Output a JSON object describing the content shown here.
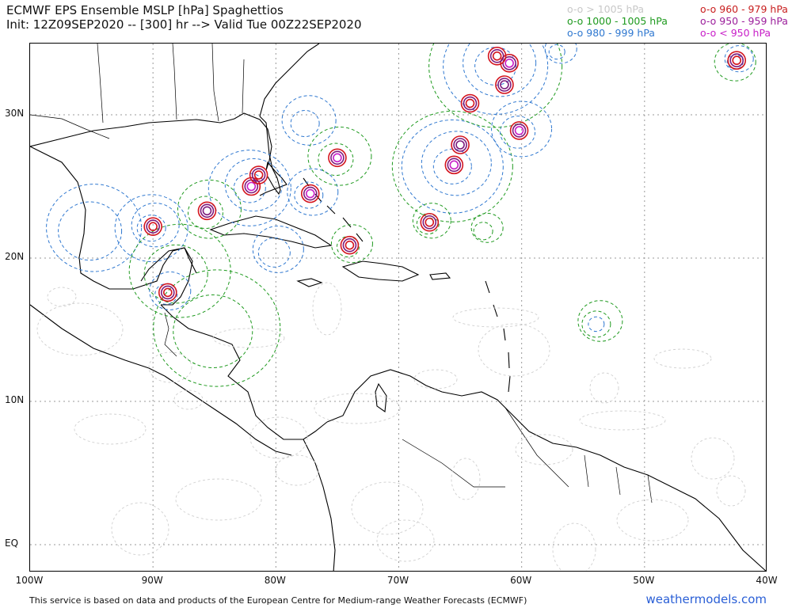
{
  "title": {
    "line1": "ECMWF EPS Ensemble MSLP [hPa] Spaghettios",
    "line2": "Init: 12Z09SEP2020 -- [300] hr --> Valid Tue 00Z22SEP2020"
  },
  "legend": {
    "col1": [
      {
        "text": "o-o > 1005 hPa",
        "color": "#c8c8c8"
      },
      {
        "text": "o-o 1000 - 1005 hPa",
        "color": "#1f9a1f"
      },
      {
        "text": "o-o 980 - 999 hPa",
        "color": "#2f78d0"
      }
    ],
    "col2": [
      {
        "text": "o-o 960 - 979 hPa",
        "color": "#c81e1e"
      },
      {
        "text": "o-o 950 - 959 hPa",
        "color": "#9b1e9b"
      },
      {
        "text": "o-o < 950 hPa",
        "color": "#c81ec8"
      }
    ]
  },
  "axes": {
    "lat_labels": [
      "30N",
      "20N",
      "10N",
      "EQ"
    ],
    "lon_labels": [
      "100W",
      "90W",
      "80W",
      "70W",
      "60W",
      "50W",
      "40W"
    ]
  },
  "footer": {
    "credit": "This service is based on data and products of the European Centre for Medium-range Weather Forecasts (ECMWF)",
    "brand": "weathermodels.com"
  },
  "lows": [
    {
      "lon": -90.0,
      "lat": 22.2,
      "cat": "red"
    },
    {
      "lon": -85.6,
      "lat": 23.3,
      "cat": "purple"
    },
    {
      "lon": -82.0,
      "lat": 25.0,
      "cat": "magenta"
    },
    {
      "lon": -81.4,
      "lat": 25.8,
      "cat": "red"
    },
    {
      "lon": -77.2,
      "lat": 24.5,
      "cat": "magenta"
    },
    {
      "lon": -75.0,
      "lat": 27.0,
      "cat": "magenta"
    },
    {
      "lon": -74.0,
      "lat": 20.9,
      "cat": "red"
    },
    {
      "lon": -88.8,
      "lat": 17.6,
      "cat": "red"
    },
    {
      "lon": -67.5,
      "lat": 22.5,
      "cat": "red"
    },
    {
      "lon": -65.5,
      "lat": 26.5,
      "cat": "magenta"
    },
    {
      "lon": -65.0,
      "lat": 27.9,
      "cat": "purple"
    },
    {
      "lon": -60.2,
      "lat": 28.9,
      "cat": "magenta"
    },
    {
      "lon": -61.4,
      "lat": 32.1,
      "cat": "purple"
    },
    {
      "lon": -61.0,
      "lat": 33.6,
      "cat": "magenta"
    },
    {
      "lon": -62.0,
      "lat": 34.1,
      "cat": "red"
    },
    {
      "lon": -42.5,
      "lat": 33.8,
      "cat": "red"
    },
    {
      "lon": -64.2,
      "lat": 30.8,
      "cat": "red"
    }
  ],
  "contour_rings": [
    {
      "lon": -90.0,
      "lat": 22.2,
      "color": "#2f78d0",
      "r": [
        18,
        30,
        46
      ]
    },
    {
      "lon": -85.6,
      "lat": 23.3,
      "color": "#1f9a1f",
      "r": [
        22,
        40
      ]
    },
    {
      "lon": -82.0,
      "lat": 25.0,
      "color": "#2f78d0",
      "r": [
        20,
        36,
        52
      ]
    },
    {
      "lon": -77.2,
      "lat": 24.5,
      "color": "#2f78d0",
      "r": [
        18,
        32
      ]
    },
    {
      "lon": -77.5,
      "lat": 29.5,
      "color": "#2f78d0",
      "r": [
        18,
        34
      ]
    },
    {
      "lon": -75.0,
      "lat": 27.0,
      "color": "#1f9a1f",
      "r": [
        22,
        40
      ]
    },
    {
      "lon": -74.0,
      "lat": 20.9,
      "color": "#1f9a1f",
      "r": [
        14,
        26
      ]
    },
    {
      "lon": -65.5,
      "lat": 26.5,
      "color": "#2f78d0",
      "r": [
        24,
        44,
        64
      ]
    },
    {
      "lon": -65.5,
      "lat": 26.5,
      "color": "#1f9a1f",
      "r": [
        76
      ]
    },
    {
      "lon": -60.2,
      "lat": 28.9,
      "color": "#2f78d0",
      "r": [
        22,
        38
      ]
    },
    {
      "lon": -62.0,
      "lat": 33.5,
      "color": "#2f78d0",
      "r": [
        26,
        46,
        66
      ]
    },
    {
      "lon": -62.0,
      "lat": 33.5,
      "color": "#1f9a1f",
      "r": [
        84
      ]
    },
    {
      "lon": -67.5,
      "lat": 22.5,
      "color": "#1f9a1f",
      "r": [
        14,
        24
      ]
    },
    {
      "lon": -63.0,
      "lat": 22.0,
      "color": "#1f9a1f",
      "r": [
        12,
        20
      ]
    },
    {
      "lon": -57.0,
      "lat": 34.5,
      "color": "#2f78d0",
      "r": [
        10,
        20
      ]
    },
    {
      "lon": -42.5,
      "lat": 33.8,
      "color": "#2f78d0",
      "r": [
        10,
        18
      ]
    },
    {
      "lon": -42.5,
      "lat": 33.8,
      "color": "#1f9a1f",
      "r": [
        26
      ]
    },
    {
      "lon": -53.8,
      "lat": 15.5,
      "color": "#2f78d0",
      "r": [
        10
      ]
    },
    {
      "lon": -53.8,
      "lat": 15.5,
      "color": "#1f9a1f",
      "r": [
        18,
        28
      ]
    },
    {
      "lon": -95.0,
      "lat": 22.0,
      "color": "#2f78d0",
      "r": [
        40,
        60
      ]
    },
    {
      "lon": -88.0,
      "lat": 19.0,
      "color": "#1f9a1f",
      "r": [
        40,
        64
      ]
    },
    {
      "lon": -88.8,
      "lat": 17.6,
      "color": "#2f78d0",
      "r": [
        14,
        26
      ]
    },
    {
      "lon": -85.0,
      "lat": 15.0,
      "color": "#1f9a1f",
      "r": [
        50,
        80
      ]
    },
    {
      "lon": -80.0,
      "lat": 20.5,
      "color": "#2f78d0",
      "r": [
        20,
        32
      ]
    }
  ]
}
